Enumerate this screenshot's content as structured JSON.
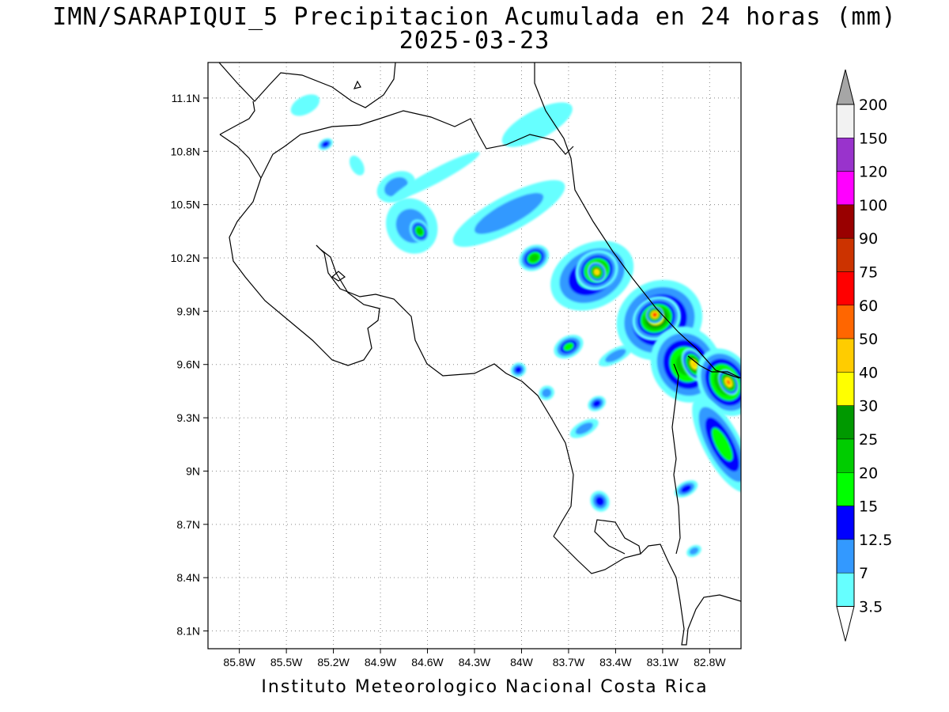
{
  "title": {
    "line1": "IMN/SARAPIQUI_5 Precipitacion Acumulada en 24 horas (mm)",
    "line2": "2025-03-23"
  },
  "footer": "Instituto Meteorologico Nacional Costa Rica",
  "map": {
    "variable": "Precipitacion Acumulada en 24 horas (mm)",
    "projection": "lat-lon",
    "lon_range": [
      -86.0,
      -82.6
    ],
    "lat_range": [
      8.0,
      11.3
    ],
    "grid": "dotted",
    "x_ticks": [
      {
        "value": -85.8,
        "label": "85.8W"
      },
      {
        "value": -85.5,
        "label": "85.5W"
      },
      {
        "value": -85.2,
        "label": "85.2W"
      },
      {
        "value": -84.9,
        "label": "84.9W"
      },
      {
        "value": -84.6,
        "label": "84.6W"
      },
      {
        "value": -84.3,
        "label": "84.3W"
      },
      {
        "value": -84.0,
        "label": "84W"
      },
      {
        "value": -83.7,
        "label": "83.7W"
      },
      {
        "value": -83.4,
        "label": "83.4W"
      },
      {
        "value": -83.1,
        "label": "83.1W"
      },
      {
        "value": -82.8,
        "label": "82.8W"
      }
    ],
    "y_ticks": [
      {
        "value": 11.1,
        "label": "11.1N"
      },
      {
        "value": 10.8,
        "label": "10.8N"
      },
      {
        "value": 10.5,
        "label": "10.5N"
      },
      {
        "value": 10.2,
        "label": "10.2N"
      },
      {
        "value": 9.9,
        "label": "9.9N"
      },
      {
        "value": 9.6,
        "label": "9.6N"
      },
      {
        "value": 9.3,
        "label": "9.3N"
      },
      {
        "value": 9.0,
        "label": "9N"
      },
      {
        "value": 8.7,
        "label": "8.7N"
      },
      {
        "value": 8.4,
        "label": "8.4N"
      },
      {
        "value": 8.1,
        "label": "8.1N"
      }
    ]
  },
  "colorbar": {
    "levels": [
      "3.5",
      "7",
      "12.5",
      "15",
      "20",
      "25",
      "30",
      "40",
      "50",
      "60",
      "75",
      "90",
      "100",
      "120",
      "150",
      "200"
    ],
    "colors": [
      "#ffffff",
      "#66ffff",
      "#3399ff",
      "#0000ff",
      "#00ff00",
      "#00cc00",
      "#009900",
      "#ffff00",
      "#ffcc00",
      "#ff6600",
      "#ff0000",
      "#cc3300",
      "#990000",
      "#ff00ff",
      "#9933cc",
      "#f2f2f2",
      "#a6a6a6"
    ]
  },
  "precip_cells": [
    {
      "lon": -85.38,
      "lat": 11.06,
      "rx": 0.1,
      "ry": 0.05,
      "level": 1
    },
    {
      "lon": -85.25,
      "lat": 10.84,
      "rx": 0.05,
      "ry": 0.03,
      "level": 3
    },
    {
      "lon": -85.05,
      "lat": 10.72,
      "rx": 0.04,
      "ry": 0.06,
      "level": 1
    },
    {
      "lon": -84.8,
      "lat": 10.6,
      "rx": 0.13,
      "ry": 0.08,
      "level": 2
    },
    {
      "lon": -84.7,
      "lat": 10.38,
      "rx": 0.16,
      "ry": 0.16,
      "level": 2
    },
    {
      "lon": -84.65,
      "lat": 10.35,
      "rx": 0.06,
      "ry": 0.07,
      "level": 5
    },
    {
      "lon": -84.55,
      "lat": 10.66,
      "rx": 0.32,
      "ry": 0.04,
      "level": 1
    },
    {
      "lon": -84.08,
      "lat": 10.45,
      "rx": 0.4,
      "ry": 0.1,
      "level": 2
    },
    {
      "lon": -83.9,
      "lat": 10.95,
      "rx": 0.25,
      "ry": 0.08,
      "level": 1
    },
    {
      "lon": -83.92,
      "lat": 10.2,
      "rx": 0.1,
      "ry": 0.07,
      "level": 5
    },
    {
      "lon": -83.55,
      "lat": 10.1,
      "rx": 0.28,
      "ry": 0.18,
      "level": 4
    },
    {
      "lon": -83.52,
      "lat": 10.13,
      "rx": 0.14,
      "ry": 0.11,
      "level": 7
    },
    {
      "lon": -83.52,
      "lat": 10.12,
      "rx": 0.06,
      "ry": 0.06,
      "level": 8
    },
    {
      "lon": -83.12,
      "lat": 9.85,
      "rx": 0.28,
      "ry": 0.22,
      "level": 5
    },
    {
      "lon": -83.14,
      "lat": 9.86,
      "rx": 0.16,
      "ry": 0.12,
      "level": 8
    },
    {
      "lon": -83.15,
      "lat": 9.88,
      "rx": 0.06,
      "ry": 0.05,
      "level": 10
    },
    {
      "lon": -82.95,
      "lat": 9.6,
      "rx": 0.22,
      "ry": 0.22,
      "level": 5
    },
    {
      "lon": -82.9,
      "lat": 9.6,
      "rx": 0.07,
      "ry": 0.1,
      "level": 8
    },
    {
      "lon": -82.7,
      "lat": 9.5,
      "rx": 0.17,
      "ry": 0.2,
      "level": 6
    },
    {
      "lon": -82.68,
      "lat": 9.5,
      "rx": 0.06,
      "ry": 0.08,
      "level": 9
    },
    {
      "lon": -82.72,
      "lat": 9.15,
      "rx": 0.12,
      "ry": 0.3,
      "level": 4
    },
    {
      "lon": -83.7,
      "lat": 9.7,
      "rx": 0.1,
      "ry": 0.06,
      "level": 4
    },
    {
      "lon": -83.4,
      "lat": 9.65,
      "rx": 0.12,
      "ry": 0.04,
      "level": 2
    },
    {
      "lon": -84.02,
      "lat": 9.57,
      "rx": 0.05,
      "ry": 0.04,
      "level": 3
    },
    {
      "lon": -83.84,
      "lat": 9.44,
      "rx": 0.05,
      "ry": 0.04,
      "level": 2
    },
    {
      "lon": -83.52,
      "lat": 9.38,
      "rx": 0.06,
      "ry": 0.04,
      "level": 3
    },
    {
      "lon": -83.6,
      "lat": 9.24,
      "rx": 0.1,
      "ry": 0.04,
      "level": 2
    },
    {
      "lon": -83.5,
      "lat": 8.83,
      "rx": 0.06,
      "ry": 0.06,
      "level": 3
    },
    {
      "lon": -82.95,
      "lat": 8.9,
      "rx": 0.08,
      "ry": 0.04,
      "level": 3
    },
    {
      "lon": -82.9,
      "lat": 8.55,
      "rx": 0.05,
      "ry": 0.03,
      "level": 2
    }
  ]
}
